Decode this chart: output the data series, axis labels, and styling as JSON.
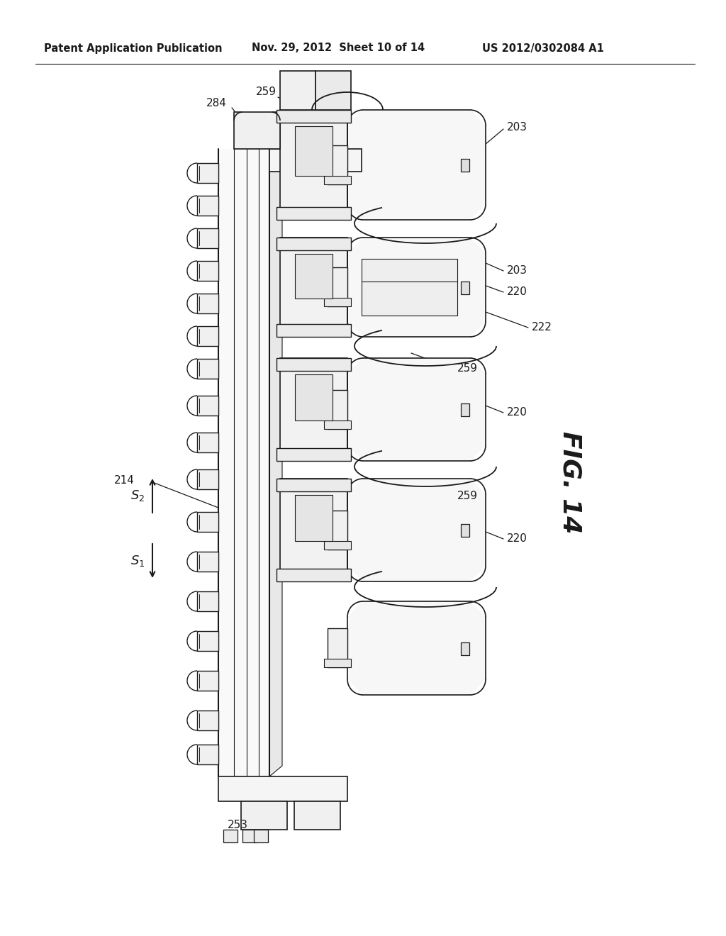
{
  "header_left": "Patent Application Publication",
  "header_center": "Nov. 29, 2012  Sheet 10 of 14",
  "header_right": "US 2012/0302084 A1",
  "fig_label": "FIG. 14",
  "background_color": "#ffffff",
  "line_color": "#1a1a1a",
  "header_fontsize": 10.5,
  "label_fontsize": 11,
  "fig_label_fontsize": 26
}
